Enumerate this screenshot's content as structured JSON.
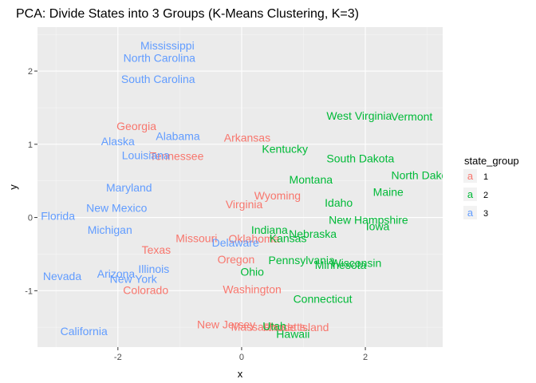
{
  "chart_data": {
    "type": "scatter",
    "title": "PCA: Divide States into 3 Groups (K-Means Clustering, K=3)",
    "xlabel": "x",
    "ylabel": "y",
    "xlim": [
      -3.3,
      3.25
    ],
    "ylim": [
      -1.77,
      2.6
    ],
    "x_ticks": [
      -2,
      0,
      2
    ],
    "y_ticks": [
      -1,
      0,
      1,
      2
    ],
    "grid": true,
    "legend": {
      "title": "state_group",
      "placement": "right",
      "entries": [
        {
          "key": "a",
          "label": "1",
          "color": "#F8766D"
        },
        {
          "key": "a",
          "label": "2",
          "color": "#00BA38"
        },
        {
          "key": "a",
          "label": "3",
          "color": "#619CFF"
        }
      ]
    },
    "series": [
      {
        "name": "1",
        "color": "#F8766D",
        "points": [
          {
            "label": "Georgia",
            "x": -1.7,
            "y": 1.25
          },
          {
            "label": "Tennessee",
            "x": -1.05,
            "y": 0.84
          },
          {
            "label": "Arkansas",
            "x": 0.09,
            "y": 1.09
          },
          {
            "label": "Wyoming",
            "x": 0.58,
            "y": 0.3
          },
          {
            "label": "Virginia",
            "x": 0.04,
            "y": 0.18
          },
          {
            "label": "Missouri",
            "x": -0.73,
            "y": -0.28
          },
          {
            "label": "Oklahoma",
            "x": 0.2,
            "y": -0.29
          },
          {
            "label": "Texas",
            "x": -1.38,
            "y": -0.44
          },
          {
            "label": "Oregon",
            "x": -0.09,
            "y": -0.57
          },
          {
            "label": "Colorado",
            "x": -1.55,
            "y": -0.99
          },
          {
            "label": "Washington",
            "x": 0.17,
            "y": -0.98
          },
          {
            "label": "New Jersey",
            "x": -0.25,
            "y": -1.46
          },
          {
            "label": "Massachusetts",
            "x": 0.43,
            "y": -1.49
          },
          {
            "label": "Rhode Island",
            "x": 0.88,
            "y": -1.5
          }
        ]
      },
      {
        "name": "2",
        "color": "#00BA38",
        "points": [
          {
            "label": "West Virginia",
            "x": 1.9,
            "y": 1.39
          },
          {
            "label": "Vermont",
            "x": 2.75,
            "y": 1.38
          },
          {
            "label": "Kentucky",
            "x": 0.7,
            "y": 0.94
          },
          {
            "label": "South Dakota",
            "x": 1.92,
            "y": 0.81
          },
          {
            "label": "North Dakota",
            "x": 2.95,
            "y": 0.58
          },
          {
            "label": "Montana",
            "x": 1.12,
            "y": 0.52
          },
          {
            "label": "Maine",
            "x": 2.37,
            "y": 0.35
          },
          {
            "label": "Idaho",
            "x": 1.57,
            "y": 0.2
          },
          {
            "label": "New Hampshire",
            "x": 2.05,
            "y": -0.03
          },
          {
            "label": "Iowa",
            "x": 2.2,
            "y": -0.12
          },
          {
            "label": "Nebraska",
            "x": 1.15,
            "y": -0.22
          },
          {
            "label": "Indiana",
            "x": 0.45,
            "y": -0.17
          },
          {
            "label": "Kansas",
            "x": 0.75,
            "y": -0.28
          },
          {
            "label": "Pennsylvania",
            "x": 0.97,
            "y": -0.58
          },
          {
            "label": "Wisconsin",
            "x": 1.85,
            "y": -0.62
          },
          {
            "label": "Minnesota",
            "x": 1.6,
            "y": -0.65
          },
          {
            "label": "Ohio",
            "x": 0.17,
            "y": -0.74
          },
          {
            "label": "Connecticut",
            "x": 1.31,
            "y": -1.11
          },
          {
            "label": "Utah",
            "x": 0.53,
            "y": -1.48
          },
          {
            "label": "Hawaii",
            "x": 0.83,
            "y": -1.59
          }
        ]
      },
      {
        "name": "3",
        "color": "#619CFF",
        "points": [
          {
            "label": "Mississippi",
            "x": -1.2,
            "y": 2.35
          },
          {
            "label": "North Carolina",
            "x": -1.33,
            "y": 2.18
          },
          {
            "label": "South Carolina",
            "x": -1.35,
            "y": 1.89
          },
          {
            "label": "Alabama",
            "x": -1.03,
            "y": 1.11
          },
          {
            "label": "Alaska",
            "x": -2.0,
            "y": 1.04
          },
          {
            "label": "Louisiana",
            "x": -1.55,
            "y": 0.85
          },
          {
            "label": "Maryland",
            "x": -1.82,
            "y": 0.41
          },
          {
            "label": "New Mexico",
            "x": -2.02,
            "y": 0.13
          },
          {
            "label": "Florida",
            "x": -2.97,
            "y": 0.02
          },
          {
            "label": "Michigan",
            "x": -2.13,
            "y": -0.17
          },
          {
            "label": "Delaware",
            "x": -0.1,
            "y": -0.34
          },
          {
            "label": "Illinois",
            "x": -1.42,
            "y": -0.7
          },
          {
            "label": "Arizona",
            "x": -2.03,
            "y": -0.77
          },
          {
            "label": "New York",
            "x": -1.75,
            "y": -0.84
          },
          {
            "label": "Nevada",
            "x": -2.9,
            "y": -0.8
          },
          {
            "label": "California",
            "x": -2.55,
            "y": -1.55
          }
        ]
      }
    ]
  }
}
